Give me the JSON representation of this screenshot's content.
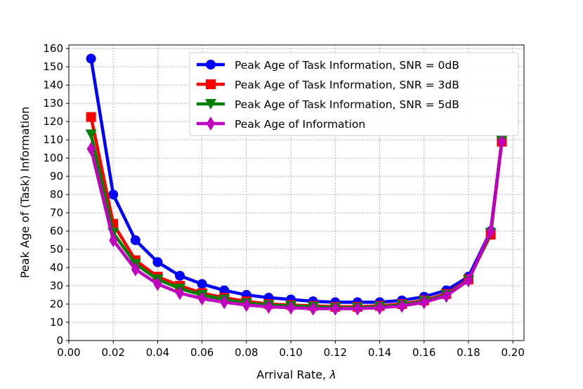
{
  "chart_data": {
    "type": "line",
    "xlabel": "Arrival Rate, λ",
    "ylabel": "Peak Age of (Task) Information",
    "xlim": [
      0.0,
      0.205
    ],
    "ylim": [
      0,
      162
    ],
    "xticks": [
      "0.00",
      "0.02",
      "0.04",
      "0.06",
      "0.08",
      "0.10",
      "0.12",
      "0.14",
      "0.16",
      "0.18",
      "0.20"
    ],
    "yticks": [
      "0",
      "10",
      "20",
      "30",
      "40",
      "50",
      "60",
      "70",
      "80",
      "90",
      "100",
      "110",
      "120",
      "130",
      "140",
      "150",
      "160"
    ],
    "grid": true,
    "legend_position": "top-right",
    "x": [
      0.01,
      0.02,
      0.03,
      0.04,
      0.05,
      0.06,
      0.07,
      0.08,
      0.09,
      0.1,
      0.11,
      0.12,
      0.13,
      0.14,
      0.15,
      0.16,
      0.17,
      0.18,
      0.19,
      0.195
    ],
    "series": [
      {
        "name": "Peak Age of Task Information, SNR = 0dB",
        "color": "#0000ff",
        "marker": "circle",
        "values": [
          154.5,
          80,
          55,
          43,
          35.5,
          31,
          27.5,
          25,
          23.5,
          22.5,
          21.5,
          21,
          21,
          21,
          22,
          24,
          27.5,
          35,
          60,
          109
        ]
      },
      {
        "name": "Peak Age of Task Information, SNR = 3dB",
        "color": "#ff0000",
        "marker": "square",
        "values": [
          122.5,
          64,
          44,
          35,
          30,
          26,
          23.5,
          21.5,
          20,
          19.5,
          19,
          18.5,
          18.5,
          19,
          20,
          22,
          25.5,
          33.5,
          58,
          109
        ]
      },
      {
        "name": "Peak Age of Task Information, SNR = 5dB",
        "color": "#008000",
        "marker": "triangle-down",
        "values": [
          113,
          59,
          42,
          33.5,
          28.5,
          25,
          22.5,
          20.5,
          19.5,
          19,
          18.5,
          18,
          18,
          18.5,
          19.5,
          21.5,
          25,
          33,
          59,
          109.5
        ]
      },
      {
        "name": "Peak Age of Information",
        "color": "#bf00bf",
        "marker": "thin-diamond",
        "values": [
          105,
          55,
          39,
          31,
          26,
          23,
          21,
          19.5,
          18.5,
          18,
          17.5,
          17.5,
          17.5,
          18,
          19,
          21,
          24.5,
          33,
          60,
          109
        ]
      }
    ]
  }
}
